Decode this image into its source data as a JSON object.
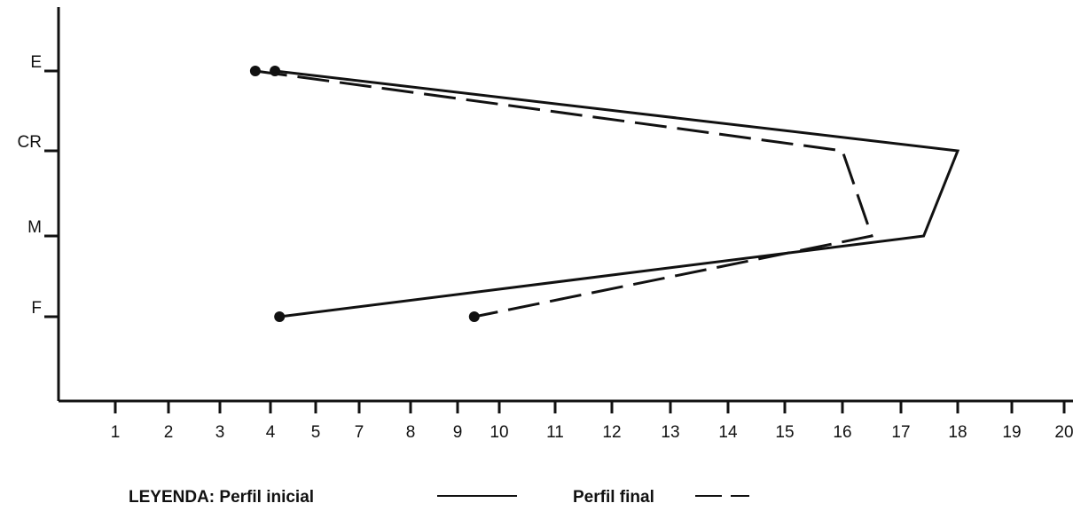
{
  "chart_data": {
    "type": "line",
    "orientation": "horizontal-profile",
    "categories": [
      "E",
      "CR",
      "M",
      "F"
    ],
    "x_ticks": [
      "1",
      "2",
      "3",
      "4",
      "5",
      "7",
      "8",
      "9",
      "10",
      "11",
      "12",
      "13",
      "14",
      "15",
      "16",
      "17",
      "18",
      "19",
      "20"
    ],
    "series": [
      {
        "name": "Perfil inicial",
        "style": "solid",
        "values": [
          4.1,
          18,
          17.4,
          4.2
        ]
      },
      {
        "name": "Perfil final",
        "style": "dashed",
        "values": [
          3.7,
          16,
          16.5,
          9.4
        ]
      }
    ],
    "legend": {
      "prefix": "LEYENDA:",
      "position": "bottom-left"
    },
    "colors": {
      "line": "#111111",
      "axis": "#111111"
    }
  }
}
